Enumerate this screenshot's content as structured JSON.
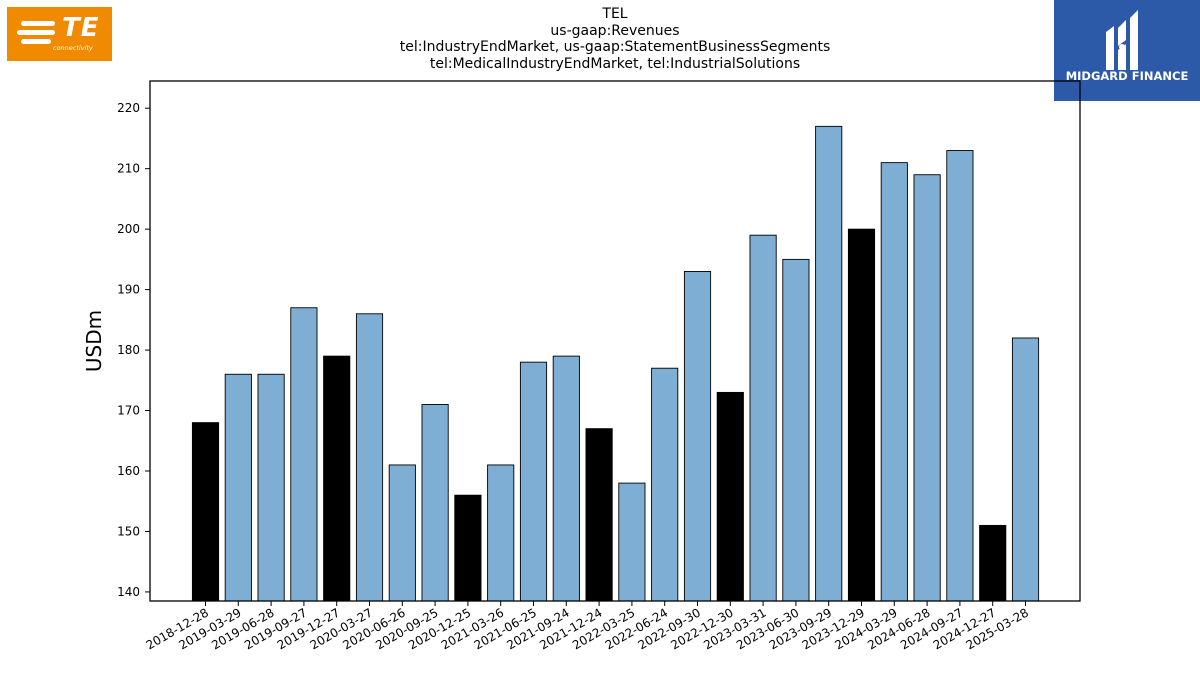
{
  "header": {
    "title_lines": [
      "TEL",
      "us-gaap:Revenues",
      "tel:IndustryEndMarket, us-gaap:StatementBusinessSegments",
      "tel:MedicalIndustryEndMarket, tel:IndustrialSolutions"
    ]
  },
  "logos": {
    "left": {
      "text": "TE",
      "subtext": "connectivity",
      "color": "#f08a00"
    },
    "right": {
      "text": "MIDGARD FINANCE",
      "color": "#2c5aa9"
    }
  },
  "chart_data": {
    "type": "bar",
    "title": "TEL\nus-gaap:Revenues\ntel:IndustryEndMarket, us-gaap:StatementBusinessSegments\ntel:MedicalIndustryEndMarket, tel:IndustrialSolutions",
    "xlabel": "",
    "ylabel": "USDm",
    "ylim": [
      138.5,
      224.5
    ],
    "yticks": [
      140,
      150,
      160,
      170,
      180,
      190,
      200,
      210,
      220
    ],
    "grid": false,
    "bar_color": "#7eaed3",
    "highlight_color": "#000000",
    "categories": [
      "2018-12-28",
      "2019-03-29",
      "2019-06-28",
      "2019-09-27",
      "2019-12-27",
      "2020-03-27",
      "2020-06-26",
      "2020-09-25",
      "2020-12-25",
      "2021-03-26",
      "2021-06-25",
      "2021-09-24",
      "2021-12-24",
      "2022-03-25",
      "2022-06-24",
      "2022-09-30",
      "2022-12-30",
      "2023-03-31",
      "2023-06-30",
      "2023-09-29",
      "2023-12-29",
      "2024-03-29",
      "2024-06-28",
      "2024-09-27",
      "2024-12-27",
      "2025-03-28"
    ],
    "values": [
      168,
      176,
      176,
      187,
      179,
      186,
      161,
      171,
      156,
      161,
      178,
      179,
      167,
      158,
      177,
      193,
      173,
      199,
      195,
      217,
      200,
      211,
      209,
      213,
      151,
      182
    ],
    "highlighted": [
      true,
      false,
      false,
      false,
      true,
      false,
      false,
      false,
      true,
      false,
      false,
      false,
      true,
      false,
      false,
      false,
      true,
      false,
      false,
      false,
      true,
      false,
      false,
      false,
      true,
      false
    ]
  }
}
